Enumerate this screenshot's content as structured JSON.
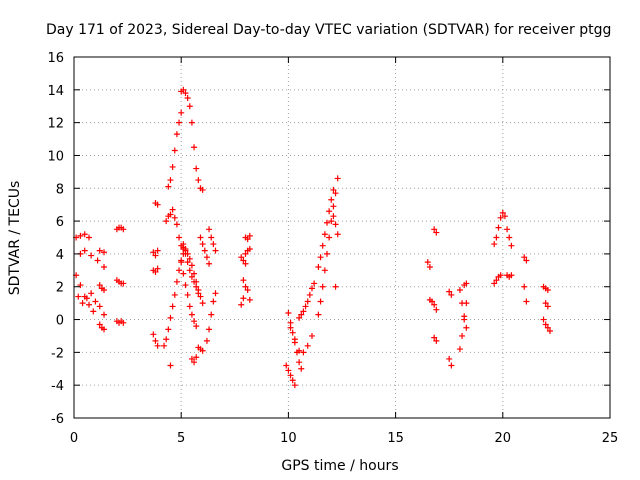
{
  "chart_data": {
    "type": "scatter",
    "title": "Day 171 of 2023, Sidereal Day-to-day VTEC variation (SDTVAR) for receiver ptgg",
    "xlabel": "GPS time / hours",
    "ylabel": "SDTVAR / TECUs",
    "xlim": [
      0,
      25
    ],
    "ylim": [
      -6,
      16
    ],
    "xticks": [
      "0",
      "5",
      "10",
      "15",
      "20",
      "25"
    ],
    "yticks": [
      "-6",
      "-4",
      "-2",
      "0",
      "2",
      "4",
      "6",
      "8",
      "10",
      "12",
      "14",
      "16"
    ],
    "grid": true,
    "marker": "+",
    "marker_color": "#ff0000",
    "series": [
      {
        "name": "t00",
        "x": [
          0.1,
          0.3,
          0.5,
          0.7
        ],
        "y": [
          5.0,
          5.1,
          5.2,
          5.0
        ]
      },
      {
        "name": "t01",
        "x": [
          0.1,
          0.3,
          0.5,
          0.7,
          0.9
        ],
        "y": [
          2.7,
          2.1,
          1.4,
          0.9,
          0.5
        ]
      },
      {
        "name": "t02",
        "x": [
          0.2,
          0.4,
          0.6,
          0.8,
          1.0,
          1.2,
          1.4
        ],
        "y": [
          1.4,
          1.0,
          1.3,
          1.6,
          1.1,
          0.8,
          0.3
        ]
      },
      {
        "name": "t03",
        "x": [
          0.3,
          0.5,
          0.8,
          1.1,
          1.4
        ],
        "y": [
          4.0,
          4.2,
          3.9,
          3.6,
          3.2
        ]
      },
      {
        "name": "t04",
        "x": [
          1.2,
          1.3,
          1.4
        ],
        "y": [
          -0.3,
          -0.5,
          -0.6
        ]
      },
      {
        "name": "t05",
        "x": [
          1.2,
          1.3,
          1.4
        ],
        "y": [
          2.1,
          1.9,
          1.8
        ]
      },
      {
        "name": "t06",
        "x": [
          1.2,
          1.4
        ],
        "y": [
          4.2,
          4.1
        ]
      },
      {
        "name": "t07",
        "x": [
          2.0,
          2.1,
          2.2,
          2.3
        ],
        "y": [
          5.5,
          5.6,
          5.6,
          5.5
        ]
      },
      {
        "name": "t08",
        "x": [
          2.0,
          2.1,
          2.2,
          2.3
        ],
        "y": [
          2.4,
          2.3,
          2.2,
          2.2
        ]
      },
      {
        "name": "t09",
        "x": [
          2.0,
          2.1,
          2.2,
          2.3
        ],
        "y": [
          -0.1,
          -0.2,
          -0.1,
          -0.2
        ]
      },
      {
        "name": "t10",
        "x": [
          3.8,
          3.9
        ],
        "y": [
          7.1,
          7.0
        ]
      },
      {
        "name": "t11",
        "x": [
          3.7,
          3.8,
          3.9
        ],
        "y": [
          4.1,
          3.9,
          4.2
        ]
      },
      {
        "name": "t12",
        "x": [
          3.7,
          3.8,
          3.9
        ],
        "y": [
          3.0,
          2.9,
          3.1
        ]
      },
      {
        "name": "t13",
        "x": [
          3.7,
          3.8,
          3.9
        ],
        "y": [
          -0.9,
          -1.3,
          -1.6
        ]
      },
      {
        "name": "t14",
        "x": [
          4.3,
          4.4,
          4.5,
          4.6,
          4.7,
          4.8,
          4.9,
          5.0,
          5.1
        ],
        "y": [
          6.0,
          6.3,
          6.4,
          6.7,
          6.2,
          5.8,
          5.0,
          4.5,
          4.4
        ]
      },
      {
        "name": "t15",
        "x": [
          4.4,
          4.5,
          4.6,
          4.7,
          4.8,
          4.9,
          5.0
        ],
        "y": [
          8.1,
          8.5,
          9.3,
          10.3,
          11.3,
          12.0,
          12.6
        ]
      },
      {
        "name": "t16",
        "x": [
          4.2,
          4.3,
          4.4,
          4.5,
          4.6,
          4.7,
          4.8,
          4.9,
          5.0,
          5.1,
          5.2
        ],
        "y": [
          -1.6,
          -1.2,
          -0.6,
          0.1,
          0.8,
          1.5,
          2.3,
          3.0,
          3.6,
          4.0,
          4.3
        ]
      },
      {
        "name": "t17",
        "x": [
          4.5
        ],
        "y": [
          -2.8
        ]
      },
      {
        "name": "t18",
        "x": [
          5.0,
          5.1,
          5.2,
          5.3,
          5.4,
          5.5,
          5.6,
          5.7,
          5.8
        ],
        "y": [
          13.9,
          14.0,
          13.8,
          13.5,
          13.0,
          12.0,
          10.5,
          9.2,
          8.5
        ]
      },
      {
        "name": "t19",
        "x": [
          5.1,
          5.2,
          5.3,
          5.4,
          5.5,
          5.6,
          5.7,
          5.8,
          5.9,
          6.0
        ],
        "y": [
          4.3,
          4.2,
          4.0,
          3.7,
          3.3,
          2.8,
          2.3,
          1.8,
          1.4,
          1.0
        ]
      },
      {
        "name": "t20",
        "x": [
          5.0,
          5.1,
          5.2,
          5.3,
          5.4,
          5.5,
          5.6,
          5.7
        ],
        "y": [
          3.5,
          2.8,
          2.1,
          1.5,
          0.8,
          0.3,
          -0.1,
          -0.4
        ]
      },
      {
        "name": "t21",
        "x": [
          5.1,
          5.2,
          5.3,
          5.4,
          5.5,
          5.6,
          5.7,
          5.8
        ],
        "y": [
          4.6,
          4.0,
          3.5,
          3.0,
          2.6,
          2.3,
          2.0,
          1.6
        ]
      },
      {
        "name": "t22",
        "x": [
          5.5,
          5.6,
          5.7
        ],
        "y": [
          -2.4,
          -2.6,
          -2.3
        ]
      },
      {
        "name": "t23",
        "x": [
          5.9,
          6.0
        ],
        "y": [
          8.0,
          7.9
        ]
      },
      {
        "name": "t24",
        "x": [
          5.9,
          6.0,
          6.1,
          6.2,
          6.3
        ],
        "y": [
          5.0,
          4.6,
          4.2,
          3.8,
          3.4
        ]
      },
      {
        "name": "t25",
        "x": [
          5.8,
          5.9,
          6.0
        ],
        "y": [
          -1.7,
          -1.8,
          -1.9
        ]
      },
      {
        "name": "t26",
        "x": [
          6.3,
          6.4,
          6.5,
          6.6
        ],
        "y": [
          5.5,
          5.0,
          4.6,
          4.2
        ]
      },
      {
        "name": "t27",
        "x": [
          6.2,
          6.3,
          6.4,
          6.5,
          6.6
        ],
        "y": [
          -1.3,
          -0.6,
          0.3,
          1.1,
          1.6
        ]
      },
      {
        "name": "t28",
        "x": [
          7.8,
          7.9,
          8.0
        ],
        "y": [
          3.8,
          3.6,
          3.4
        ]
      },
      {
        "name": "t29",
        "x": [
          8.0,
          8.1,
          8.2
        ],
        "y": [
          5.0,
          4.9,
          5.1
        ]
      },
      {
        "name": "t30",
        "x": [
          7.9,
          8.0,
          8.1,
          8.2
        ],
        "y": [
          2.4,
          2.0,
          1.8,
          1.2
        ]
      },
      {
        "name": "t31",
        "x": [
          7.8,
          7.9
        ],
        "y": [
          0.9,
          1.3
        ]
      },
      {
        "name": "t32",
        "x": [
          8.0,
          8.1,
          8.2
        ],
        "y": [
          4.0,
          4.2,
          4.3
        ]
      },
      {
        "name": "t33",
        "x": [
          10.0,
          10.1,
          10.2,
          10.3,
          10.4,
          10.5,
          10.6
        ],
        "y": [
          0.4,
          -0.2,
          -0.8,
          -1.4,
          -2.0,
          -2.6,
          -3.0
        ]
      },
      {
        "name": "t34",
        "x": [
          9.9,
          10.0,
          10.1,
          10.2,
          10.3
        ],
        "y": [
          -2.8,
          -3.1,
          -3.4,
          -3.7,
          -4.0
        ]
      },
      {
        "name": "t35",
        "x": [
          10.1,
          10.3,
          10.5,
          10.7,
          10.9,
          11.1
        ],
        "y": [
          -0.5,
          -1.2,
          -1.9,
          -2.0,
          -1.6,
          -1.0
        ]
      },
      {
        "name": "t36",
        "x": [
          10.5,
          10.6,
          10.7,
          10.8,
          10.9,
          11.0,
          11.1,
          11.2
        ],
        "y": [
          0.1,
          0.3,
          0.5,
          0.8,
          1.1,
          1.5,
          1.9,
          2.2
        ]
      },
      {
        "name": "t37",
        "x": [
          11.4,
          11.5,
          11.6,
          11.7,
          11.8,
          11.9,
          12.0,
          12.1,
          12.2,
          12.3
        ],
        "y": [
          0.3,
          1.1,
          2.0,
          3.0,
          4.0,
          5.0,
          6.0,
          6.9,
          7.7,
          8.6
        ]
      },
      {
        "name": "t38",
        "x": [
          11.4,
          11.5,
          11.6,
          11.7,
          11.8,
          11.9,
          12.0,
          12.1
        ],
        "y": [
          3.2,
          3.8,
          4.5,
          5.2,
          5.9,
          6.6,
          7.3,
          7.9
        ]
      },
      {
        "name": "t39",
        "x": [
          12.1,
          12.2,
          12.3
        ],
        "y": [
          6.3,
          5.8,
          5.2
        ]
      },
      {
        "name": "t40",
        "x": [
          12.2
        ],
        "y": [
          2.0
        ]
      },
      {
        "name": "t41",
        "x": [
          16.5,
          16.6
        ],
        "y": [
          3.5,
          3.2
        ]
      },
      {
        "name": "t42",
        "x": [
          16.8,
          16.9
        ],
        "y": [
          5.5,
          5.3
        ]
      },
      {
        "name": "t43",
        "x": [
          16.6,
          16.7,
          16.8,
          16.9
        ],
        "y": [
          1.2,
          1.1,
          0.9,
          0.6
        ]
      },
      {
        "name": "t44",
        "x": [
          16.8,
          16.9
        ],
        "y": [
          -1.1,
          -1.3
        ]
      },
      {
        "name": "t45",
        "x": [
          17.5,
          17.6
        ],
        "y": [
          1.7,
          1.5
        ]
      },
      {
        "name": "t46",
        "x": [
          17.5,
          17.6
        ],
        "y": [
          -2.4,
          -2.8
        ]
      },
      {
        "name": "t47",
        "x": [
          18.0,
          18.1,
          18.2,
          18.3
        ],
        "y": [
          1.8,
          1.0,
          0.2,
          -0.5
        ]
      },
      {
        "name": "t48",
        "x": [
          18.0,
          18.1,
          18.2,
          18.3
        ],
        "y": [
          -1.8,
          -1.0,
          0.0,
          1.0
        ]
      },
      {
        "name": "t49",
        "x": [
          18.2,
          18.3
        ],
        "y": [
          2.1,
          2.2
        ]
      },
      {
        "name": "t50",
        "x": [
          19.6,
          19.7,
          19.8,
          19.9,
          20.0
        ],
        "y": [
          4.6,
          5.0,
          5.6,
          6.2,
          6.5
        ]
      },
      {
        "name": "t51",
        "x": [
          19.6,
          19.7,
          19.8,
          19.9
        ],
        "y": [
          2.2,
          2.4,
          2.6,
          2.7
        ]
      },
      {
        "name": "t52",
        "x": [
          20.1,
          20.2,
          20.3,
          20.4
        ],
        "y": [
          6.3,
          5.5,
          5.0,
          4.5
        ]
      },
      {
        "name": "t53",
        "x": [
          20.2,
          20.3,
          20.4
        ],
        "y": [
          2.7,
          2.6,
          2.7
        ]
      },
      {
        "name": "t54",
        "x": [
          21.0,
          21.1
        ],
        "y": [
          3.8,
          3.6
        ]
      },
      {
        "name": "t55",
        "x": [
          21.0,
          21.1
        ],
        "y": [
          2.0,
          1.1
        ]
      },
      {
        "name": "t56",
        "x": [
          21.9,
          22.0,
          22.1
        ],
        "y": [
          2.0,
          1.9,
          1.8
        ]
      },
      {
        "name": "t57",
        "x": [
          22.0,
          22.1
        ],
        "y": [
          1.0,
          0.8
        ]
      },
      {
        "name": "t58",
        "x": [
          21.9,
          22.0,
          22.1,
          22.2
        ],
        "y": [
          0.0,
          -0.3,
          -0.5,
          -0.7
        ]
      }
    ]
  }
}
